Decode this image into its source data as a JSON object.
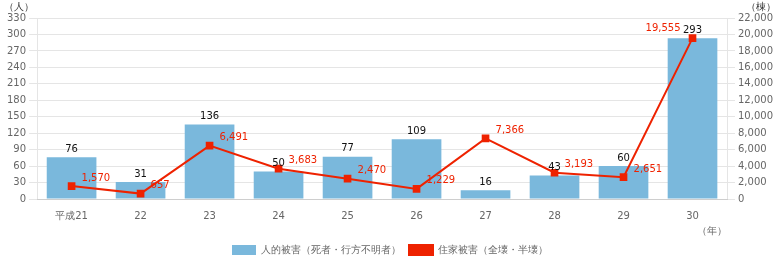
{
  "chart_data": {
    "type": "bar",
    "categories": [
      "平成21",
      "22",
      "23",
      "24",
      "25",
      "26",
      "27",
      "28",
      "29",
      "30"
    ],
    "xlabel": "（年）",
    "ylabel": "（人）",
    "y2label": "（棟）",
    "ylim": [
      0,
      330
    ],
    "yticks": [
      0,
      30,
      60,
      90,
      120,
      150,
      180,
      210,
      240,
      270,
      300,
      330
    ],
    "y2lim": [
      0,
      22000
    ],
    "y2ticks": [
      0,
      {
        "value": 2000,
        "label": "2,000"
      },
      {
        "value": 4000,
        "label": "4,000"
      },
      {
        "value": 6000,
        "label": "6,000"
      },
      {
        "value": 8000,
        "label": "8,000"
      },
      {
        "value": 10000,
        "label": "10,000"
      },
      {
        "value": 12000,
        "label": "12,000"
      },
      {
        "value": 14000,
        "label": "14,000"
      },
      {
        "value": 16000,
        "label": "16,000"
      },
      {
        "value": 18000,
        "label": "18,000"
      },
      {
        "value": 20000,
        "label": "20,000"
      },
      {
        "value": 22000,
        "label": "22,000"
      }
    ],
    "grid": true,
    "legend": "bottom",
    "data_labels": true,
    "series": [
      {
        "name": "人的被害（死者・行方不明者）",
        "type": "bar",
        "color": "#7ab8dc",
        "values": [
          76,
          31,
          136,
          50,
          77,
          109,
          16,
          43,
          60,
          293
        ]
      },
      {
        "name": "住家被害（全壊・半壊）",
        "type": "line",
        "axis": "y2",
        "color": "#ee2200",
        "marker": "square",
        "values": [
          1570,
          657,
          6491,
          3683,
          2470,
          1229,
          7366,
          3193,
          2651,
          19555
        ],
        "value_labels": [
          "1,570",
          "657",
          "6,491",
          "3,683",
          "2,470",
          "1,229",
          "7,366",
          "3,193",
          "2,651",
          "19,555"
        ]
      }
    ]
  }
}
